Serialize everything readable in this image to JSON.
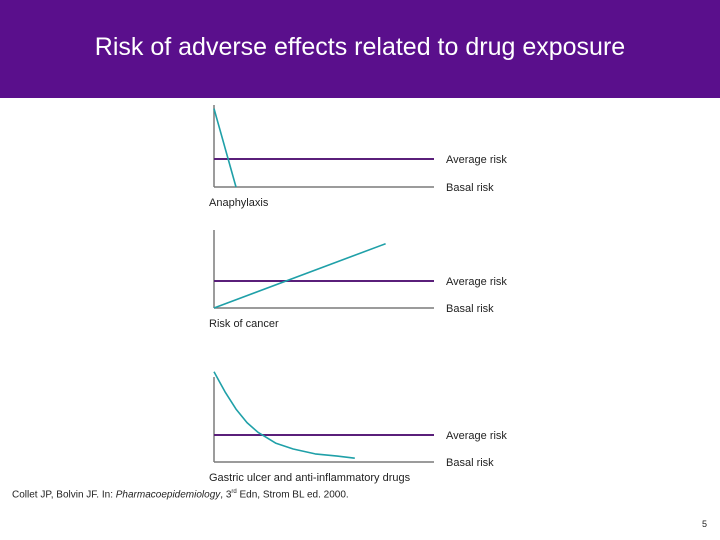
{
  "slide": {
    "title": "Risk of adverse effects related to drug exposure",
    "citation_prefix": "Collet JP, Bolvin JF. In: ",
    "citation_italic": "Pharmacoepidemiology",
    "citation_mid": ", 3",
    "citation_sup": "rd",
    "citation_suffix": " Edn, Strom BL ed. 2000.",
    "page_number": "5"
  },
  "colors": {
    "header_bg": "#5a0f8c",
    "risk_curve": "#1fa0a8",
    "average_line": "#5a1f7a",
    "basal_line": "#7a7a7a",
    "axis": "#7a7a7a"
  },
  "chart_data": [
    {
      "type": "line",
      "title": "",
      "xlabel": "Anaphylaxis",
      "ylabel": "",
      "reference_lines": [
        {
          "label": "Average risk",
          "y": 0.5
        },
        {
          "label": "Basal risk",
          "y": 0.0
        }
      ],
      "series": [
        {
          "values": [
            {
              "x": 0.0,
              "y": 1.4
            },
            {
              "x": 0.1,
              "y": 0.0
            }
          ]
        }
      ]
    },
    {
      "type": "line",
      "title": "",
      "xlabel": "Risk of cancer",
      "ylabel": "",
      "reference_lines": [
        {
          "label": "Average risk",
          "y": 0.5
        },
        {
          "label": "Basal risk",
          "y": 0.0
        }
      ],
      "series": [
        {
          "values": [
            {
              "x": 0.0,
              "y": 0.0
            },
            {
              "x": 0.78,
              "y": 1.19
            }
          ]
        }
      ]
    },
    {
      "type": "line",
      "title": "",
      "xlabel": "Gastric ulcer and anti-inflammatory drugs",
      "ylabel": "",
      "reference_lines": [
        {
          "label": "Average risk",
          "y": 0.5
        },
        {
          "label": "Basal risk",
          "y": 0.0
        }
      ],
      "series": [
        {
          "values": [
            {
              "x": 0.0,
              "y": 1.67
            },
            {
              "x": 0.05,
              "y": 1.3
            },
            {
              "x": 0.1,
              "y": 0.98
            },
            {
              "x": 0.15,
              "y": 0.73
            },
            {
              "x": 0.2,
              "y": 0.55
            },
            {
              "x": 0.28,
              "y": 0.35
            },
            {
              "x": 0.36,
              "y": 0.24
            },
            {
              "x": 0.46,
              "y": 0.15
            },
            {
              "x": 0.56,
              "y": 0.11
            },
            {
              "x": 0.64,
              "y": 0.07
            }
          ]
        }
      ]
    }
  ]
}
